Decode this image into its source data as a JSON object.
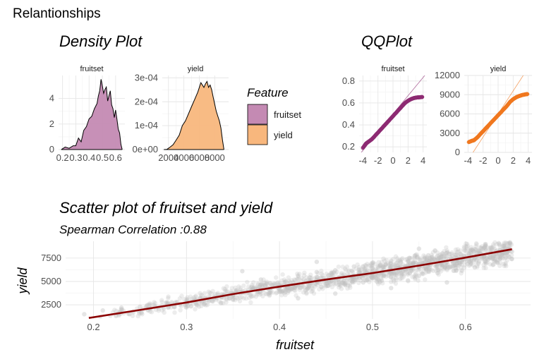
{
  "page_title": "Relantionships",
  "density_title": "Density Plot",
  "qq_title": "QQPlot",
  "legend": {
    "title": "Feature",
    "items": [
      {
        "label": "fruitset",
        "color": "#C48AB3"
      },
      {
        "label": "yield",
        "color": "#F8B77D"
      }
    ]
  },
  "chart_data": [
    {
      "type": "area",
      "panel": "fruitset",
      "strip_label": "fruitset",
      "x": [
        0.19,
        0.22,
        0.25,
        0.28,
        0.3,
        0.32,
        0.34,
        0.36,
        0.38,
        0.4,
        0.42,
        0.44,
        0.46,
        0.47,
        0.48,
        0.49,
        0.5,
        0.51,
        0.52,
        0.53,
        0.54,
        0.55,
        0.56,
        0.57,
        0.58,
        0.59,
        0.6,
        0.61,
        0.62,
        0.63,
        0.64,
        0.65
      ],
      "y": [
        0.0,
        0.2,
        0.1,
        0.3,
        0.3,
        0.9,
        0.6,
        1.5,
        1.8,
        2.4,
        2.6,
        3.2,
        3.6,
        4.2,
        4.6,
        5.5,
        5.0,
        4.4,
        4.7,
        4.9,
        3.8,
        4.2,
        4.6,
        3.5,
        3.2,
        2.5,
        3.1,
        2.4,
        1.6,
        1.3,
        0.4,
        0.0
      ],
      "xlim": [
        0.17,
        0.67
      ],
      "ylim": [
        0,
        5.8
      ],
      "x_ticks": [
        0.2,
        0.3,
        0.4,
        0.5,
        0.6
      ],
      "x_tick_labels": [
        "0.2",
        "0.3",
        "0.4",
        "0.5",
        "0.6"
      ],
      "y_ticks": [
        0,
        2,
        4
      ],
      "y_tick_labels": [
        "0",
        "2",
        "4"
      ]
    },
    {
      "type": "area",
      "panel": "yield",
      "strip_label": "yield",
      "x": [
        1400,
        1800,
        2200,
        2600,
        3000,
        3400,
        3800,
        4200,
        4600,
        5000,
        5400,
        5800,
        6200,
        6600,
        6800,
        7000,
        7200,
        7400,
        7600,
        7800,
        8000,
        8200,
        8400,
        8600,
        8800,
        9000,
        9200
      ],
      "y": [
        0.0,
        1e-06,
        1e-05,
        2e-05,
        4e-05,
        6e-05,
        0.0001,
        0.00012,
        0.00015,
        0.00018,
        0.00021,
        0.00024,
        0.00028,
        0.00026,
        0.000275,
        0.000285,
        0.00026,
        0.00027,
        0.00025,
        0.00022,
        0.00019,
        0.00016,
        0.00014,
        0.00012,
        9e-05,
        4e-05,
        0.0
      ],
      "xlim": [
        1200,
        9800
      ],
      "ylim": [
        0,
        0.00031
      ],
      "x_ticks": [
        2000,
        4000,
        6000,
        8000
      ],
      "x_tick_labels": [
        "2000",
        "4000",
        "6000",
        "8000"
      ],
      "y_ticks": [
        0,
        0.0001,
        0.0002,
        0.0003
      ],
      "y_tick_labels": [
        "0e+00",
        "1e-04",
        "2e-04",
        "3e-04"
      ]
    },
    {
      "type": "scatter",
      "panel": "qq-fruitset",
      "strip_label": "fruitset",
      "color": "#8E2C73",
      "theoretical": [
        -4.0,
        -3.6,
        -3.2,
        -2.8,
        -2.4,
        -2.0,
        -1.6,
        -1.2,
        -0.8,
        -0.4,
        0.0,
        0.4,
        0.8,
        1.2,
        1.6,
        2.0,
        2.4,
        2.8,
        3.2,
        3.6,
        3.9
      ],
      "sample": [
        0.19,
        0.23,
        0.25,
        0.27,
        0.3,
        0.33,
        0.36,
        0.39,
        0.42,
        0.45,
        0.48,
        0.51,
        0.54,
        0.57,
        0.6,
        0.62,
        0.635,
        0.645,
        0.65,
        0.652,
        0.654
      ],
      "xlim": [
        -4.5,
        4.5
      ],
      "ylim": [
        0.15,
        0.85
      ],
      "reference_line": {
        "intercept": 0.5,
        "slope": 0.083
      },
      "x_ticks": [
        -4,
        -2,
        0,
        2,
        4
      ],
      "x_tick_labels": [
        "-4",
        "-2",
        "0",
        "2",
        "4"
      ],
      "y_ticks": [
        0.2,
        0.4,
        0.6,
        0.8
      ],
      "y_tick_labels": [
        "0.2",
        "0.4",
        "0.6",
        "0.8"
      ]
    },
    {
      "type": "scatter",
      "panel": "qq-yield",
      "strip_label": "yield",
      "color": "#F07820",
      "theoretical": [
        -3.9,
        -3.5,
        -3.2,
        -2.8,
        -2.4,
        -2.0,
        -1.6,
        -1.2,
        -0.8,
        -0.4,
        0.0,
        0.4,
        0.8,
        1.2,
        1.6,
        2.0,
        2.4,
        2.8,
        3.2,
        3.6,
        3.9
      ],
      "sample": [
        1600,
        1800,
        1900,
        2300,
        2800,
        3300,
        3800,
        4300,
        4800,
        5300,
        5800,
        6300,
        6800,
        7300,
        7900,
        8300,
        8600,
        8800,
        8950,
        9050,
        9100
      ],
      "xlim": [
        -4.5,
        4.5
      ],
      "ylim": [
        0,
        12000
      ],
      "reference_line": {
        "intercept": 6000,
        "slope": 1800
      },
      "x_ticks": [
        -4,
        -2,
        0,
        2,
        4
      ],
      "x_tick_labels": [
        "-4",
        "-2",
        "0",
        "2",
        "4"
      ],
      "y_ticks": [
        0,
        3000,
        6000,
        9000,
        12000
      ],
      "y_tick_labels": [
        "0",
        "3000",
        "6000",
        "9000",
        "12000"
      ]
    },
    {
      "type": "scatter",
      "panel": "scatter-main",
      "title": "Scatter plot of fruitset and yield",
      "subtitle": "Spearman Correlation :0.88",
      "xlabel": "fruitset",
      "ylabel": "yield",
      "xlim": [
        0.17,
        0.67
      ],
      "ylim": [
        1000,
        9300
      ],
      "x_ticks": [
        0.2,
        0.3,
        0.4,
        0.5,
        0.6
      ],
      "x_tick_labels": [
        "0.2",
        "0.3",
        "0.4",
        "0.5",
        "0.6"
      ],
      "y_ticks": [
        2500,
        5000,
        7500
      ],
      "y_tick_labels": [
        "2500",
        "5000",
        "7500"
      ],
      "points_color": "#BEBEBE",
      "trend_color": "#8B0000",
      "trend": {
        "x": [
          0.195,
          0.25,
          0.3,
          0.35,
          0.4,
          0.45,
          0.5,
          0.55,
          0.6,
          0.65
        ],
        "y": [
          1100,
          1950,
          2750,
          3650,
          4450,
          5200,
          5900,
          6700,
          7550,
          8450
        ]
      },
      "points": {
        "x": [
          0.19,
          0.21,
          0.23,
          0.25,
          0.26,
          0.28,
          0.29,
          0.3,
          0.31,
          0.32,
          0.33,
          0.34,
          0.35,
          0.35,
          0.36,
          0.37,
          0.37,
          0.38,
          0.38,
          0.39,
          0.39,
          0.4,
          0.4,
          0.41,
          0.41,
          0.42,
          0.42,
          0.43,
          0.43,
          0.44,
          0.44,
          0.45,
          0.45,
          0.46,
          0.46,
          0.47,
          0.47,
          0.48,
          0.48,
          0.49,
          0.49,
          0.5,
          0.5,
          0.51,
          0.51,
          0.52,
          0.52,
          0.53,
          0.53,
          0.54,
          0.54,
          0.55,
          0.55,
          0.56,
          0.56,
          0.57,
          0.57,
          0.58,
          0.58,
          0.59,
          0.59,
          0.6,
          0.6,
          0.61,
          0.61,
          0.62,
          0.62,
          0.63,
          0.63,
          0.64,
          0.64,
          0.65,
          0.65,
          0.36,
          0.42,
          0.46,
          0.52,
          0.55,
          0.58,
          0.44
        ],
        "y": [
          1500,
          1900,
          2200,
          2300,
          2500,
          2600,
          2800,
          2700,
          3000,
          3200,
          3300,
          3500,
          3700,
          3100,
          3800,
          4100,
          3400,
          4200,
          5200,
          4300,
          3800,
          4500,
          3900,
          4600,
          4000,
          4700,
          5600,
          4800,
          4200,
          5000,
          6000,
          5100,
          4500,
          5300,
          6200,
          5400,
          4700,
          5600,
          6600,
          5700,
          4900,
          5900,
          7000,
          6000,
          5100,
          6200,
          7200,
          6300,
          5300,
          6500,
          7500,
          6600,
          5600,
          6800,
          7800,
          6900,
          5900,
          7100,
          8100,
          7200,
          6200,
          7400,
          8300,
          7500,
          6500,
          7700,
          8600,
          7800,
          6800,
          8000,
          8800,
          8200,
          7400,
          6100,
          3200,
          3700,
          4300,
          8500,
          4900,
          7100
        ]
      }
    }
  ]
}
